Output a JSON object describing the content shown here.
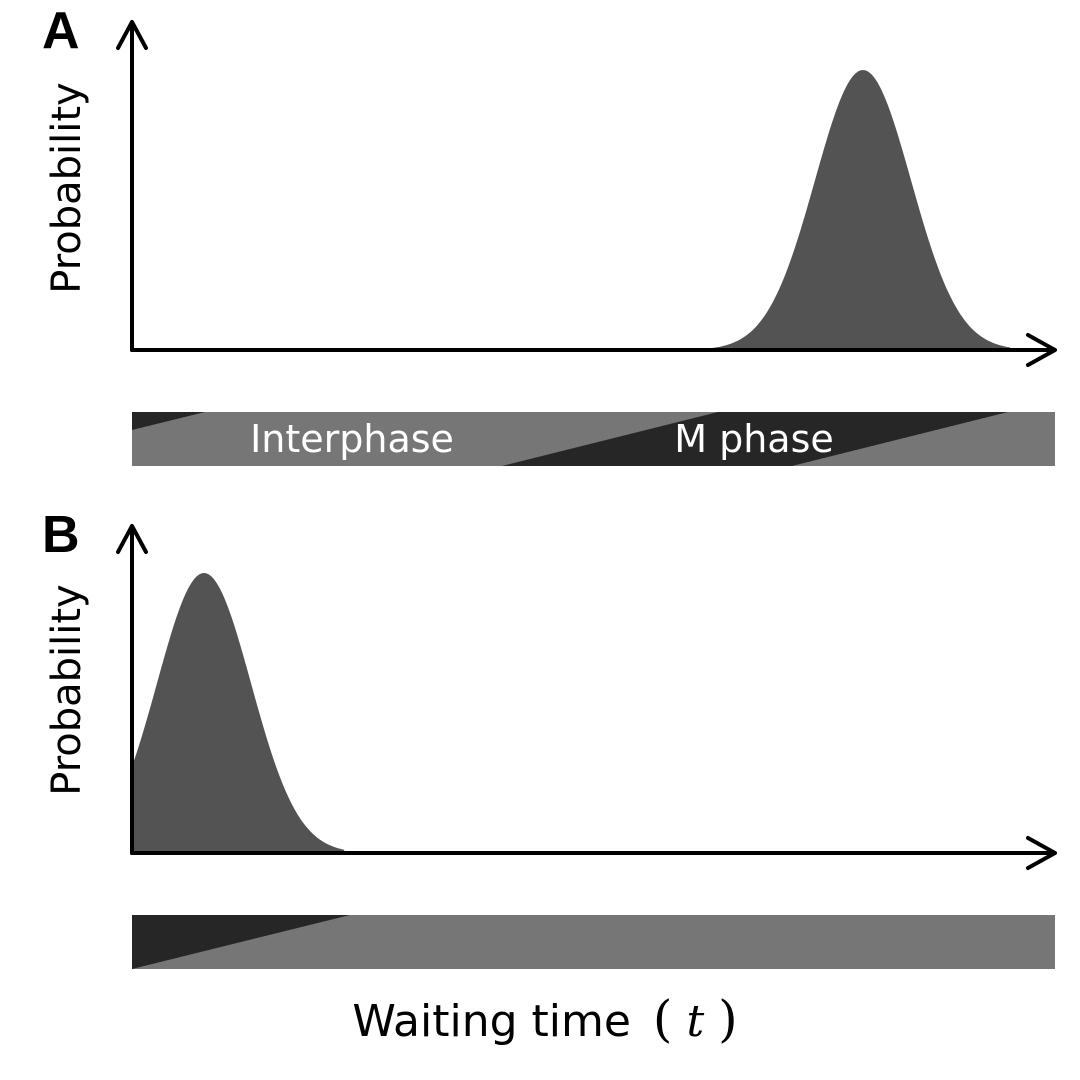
{
  "panels": [
    {
      "letter": "A",
      "ylabel": "Probability",
      "peak": "late",
      "band_labels": [
        "Interphase",
        "M phase"
      ]
    },
    {
      "letter": "B",
      "ylabel": "Probability",
      "peak": "early",
      "band_labels": []
    }
  ],
  "xlabel": {
    "text": "Waiting time",
    "open_paren": "(",
    "variable": "t",
    "close_paren": ")"
  },
  "colors": {
    "curve_fill": "#535353",
    "band_light": "#767676",
    "band_dark": "#262626",
    "axis": "#000000",
    "band_text": "#ffffff"
  }
}
